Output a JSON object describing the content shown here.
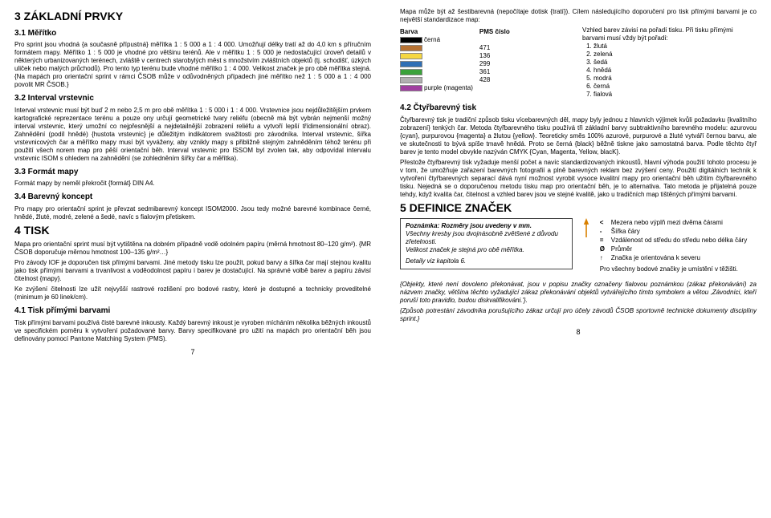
{
  "left": {
    "h1_basics": "3 ZÁKLADNÍ PRVKY",
    "h2_scale": "3.1 Měřítko",
    "p_scale1": "Pro sprint jsou vhodná {a současně přípustná} měřítka 1 : 5 000 a 1 : 4 000. Umožňují délky tratí až do 4,0 km s příručním formátem mapy. Měřítko 1 : 5 000 je vhodné pro většinu terénů. Ale v měřítku 1 : 5 000 je nedostačující úroveň detailů v některých urbanizovaných terénech, zvláště v centrech starobylých měst s množstvím zvláštních objektů (tj. schodišť, úzkých uliček nebo malých průchodů). Pro tento typ terénu bude vhodné měřítko 1 : 4 000. Velikost značek je pro obě měřítka stejná. {Na mapách pro orientační sprint v rámci ČSOB může v odůvodněných případech jiné měřítko než 1 : 5 000 a 1 : 4 000 povolit MR ČSOB.}",
    "h2_contours": "3.2 Interval vrstevnic",
    "p_contours": "Interval vrstevnic musí být buď 2 m nebo 2,5 m pro obě měřítka 1 : 5 000 i 1 : 4 000. Vrstevnice jsou nejdůležitějším prvkem kartografické reprezentace terénu a pouze ony určují geometrické tvary reliéfu (obecně má být vybrán nejmenší možný interval vrstevnic, který umožní co nejpřesnější a nejdetailnější zobrazení reliéfu a vytvoří lepší třídimensionální obraz). Zahnědění (podíl hnědé) {hustota vrstevnic} je důležitým indikátorem svažitosti pro závodníka. Interval vrstevnic, šířka vrstevnicových čar a měřítko mapy musí být vyváženy, aby vznikly mapy s přibližně stejným zahněděním téhož terénu při použití všech norem map pro pěší orientační běh. Interval vrstevnic pro ISSOM byl zvolen tak, aby odpovídal intervalu vrstevnic ISOM s ohledem na zahnědění (se zohledněním šířky čar a měřítka).",
    "h2_format": "3.3 Formát mapy",
    "p_format": "Formát mapy by neměl překročit {formát} DIN A4.",
    "h2_colour": "3.4 Barevný koncept",
    "p_colour": "Pro mapy pro orientační sprint je převzat sedmibarevný koncept ISOM2000. Jsou tedy možné barevné kombinace černé, hnědé, žluté, modré, zelené a šedé, navíc s fialovým přetiskem.",
    "h1_print": "4 TISK",
    "p_print1": "Mapa pro orientační sprint musí být vytištěna na dobrém případně vodě odolném papíru (měrná hmotnost 80–120 g/m²). {MR ČSOB doporučuje měrnou hmotnost 100–135 g/m²…}",
    "p_print2": "Pro závody IOF je doporučen tisk přímými barvami. Jiné metody tisku lze použít, pokud barvy a šířka čar mají stejnou kvalitu jako tisk přímými barvami a trvanlivost a voděodolnost papíru i barev je dostačující. Na správné volbě barev a papíru závisí čitelnost {mapy}.",
    "p_print3": "Ke zvýšení čitelnosti lze užít nejvyšší rastrové rozlišení pro bodové rastry, které je dostupné a technicky proveditelné (minimum je 60 linek/cm).",
    "h2_spot": "4.1 Tisk přímými barvami",
    "p_spot": "Tisk přímými barvami používá čisté barevné inkousty. Každý barevný inkoust je vyroben mícháním několika běžných inkoustů ve specifickém poměru k vytvoření požadované barvy. Barvy specifikované pro užití na mapách pro orientační běh jsou definovány pomocí Pantone Matching System (PMS).",
    "pagenum": "7"
  },
  "right": {
    "p_intro": "Mapa může být až šestibarevná (nepočítaje dotisk {tratí}). Cílem následujícího doporučení pro tisk přímými barvami je co největší standardizace map:",
    "color_table": {
      "headers": [
        "Barva",
        "PMS číslo"
      ],
      "rows": [
        {
          "name": "Black",
          "hex": "#000000",
          "label": "černá",
          "pms": ""
        },
        {
          "name": "Brown",
          "hex": "#b87333",
          "label": "",
          "pms": "471"
        },
        {
          "name": "Yellow",
          "hex": "#f5d742",
          "label": "",
          "pms": "136"
        },
        {
          "name": "Blue",
          "hex": "#2f6fb5",
          "label": "",
          "pms": "299"
        },
        {
          "name": "Green",
          "hex": "#3aa23a",
          "label": "",
          "pms": "361"
        },
        {
          "name": "Grey",
          "hex": "#b0b0b0",
          "label": "",
          "pms": "428"
        },
        {
          "name": "Purple",
          "hex": "#a040a0",
          "label": "purple (magenta)",
          "pms": ""
        }
      ]
    },
    "appearance_title": "Vzhled barev závisí na pořadí tisku. Při tisku přímými barvami musí vždy být pořadí:",
    "order": [
      "žlutá",
      "zelená",
      "šedá",
      "hnědá",
      "modrá",
      "černá",
      "fialová"
    ],
    "h2_cmyk": "4.2 Čtyřbarevný tisk",
    "p_cmyk1": "Čtyřbarevný tisk je tradiční způsob tisku vícebarevných děl, mapy byly jednou z hlavních výjimek kvůli požadavku {kvalitního zobrazení} tenkých čar. Metoda čtyřbarevného tisku používá tři základní barvy subtraktivního barevného modelu: azurovou {cyan}, purpurovou {magenta} a žlutou {yellow}. Teoreticky směs 100% azurové, purpurové a žluté vytváří černou barvu, ale ve skutečnosti to bývá spíše tmavě hnědá. Proto se černá {black} běžně tiskne jako samostatná barva. Podle těchto čtyř barev je tento model obvykle nazýván CMYK {Cyan, Magenta, Yellow, blacK}.",
    "p_cmyk2": "Přestože čtyřbarevný tisk vyžaduje menší počet a navíc standardizovaných inkoustů, hlavní výhoda použití tohoto procesu je v tom, že umožňuje zařazení barevných fotografií a plně barevných reklam bez zvýšení ceny. Použití digitálních technik k vytvoření čtyřbarevných separací dává nyní možnost vyrobit vysoce kvalitní mapy pro orientační běh užitím čtyřbarevného tisku. Nejedná se o doporučenou metodu tisku map pro orientační běh, je to alternativa. Tato metoda je přijatelná pouze tehdy, když kvalita čar, čitelnost a vzhled barev jsou ve stejné kvalitě, jako u tradičních map tištěných přímými barvami.",
    "h1_symbols": "5 DEFINICE ZNAČEK",
    "note_box": {
      "title": "Poznámka: Rozměry jsou uvedeny v mm.",
      "l1": "Všechny kresby jsou dvojnásobně zvětšené z důvodu zřetelnosti.",
      "l2": "Velikost značek je stejná pro obě měřítka.",
      "l3": "Detaily viz kapitola 6."
    },
    "legend": [
      {
        "sym": "<",
        "txt": "Mezera nebo výplň mezi dvěma čárami"
      },
      {
        "sym": "-",
        "txt": "Šířka čáry"
      },
      {
        "sym": "=",
        "txt": "Vzdálenost od středu do středu nebo délka čáry"
      },
      {
        "sym": "Ø",
        "txt": "Průměr"
      },
      {
        "sym": "↑",
        "txt": "Značka je orientována k severu"
      }
    ],
    "p_points": "Pro všechny bodové značky je umístění v těžišti.",
    "p_obj1": "{Objekty, které není dovoleno překonávat, jsou v popisu značky označeny fialovou poznámkou (zákaz překonávání) za názvem značky, většina těchto vyžadující zákaz překonávání objektů vytvářejícího tímto symbolem a větou ‚Závodníci, kteří poruší toto pravidlo, budou diskvalifikováni.'}.",
    "p_obj2": "{Způsob potrestání závodníka porušujícího zákaz určují pro účely závodů ČSOB sportovně technické dokumenty disciplíny sprint.}",
    "pagenum": "8"
  }
}
